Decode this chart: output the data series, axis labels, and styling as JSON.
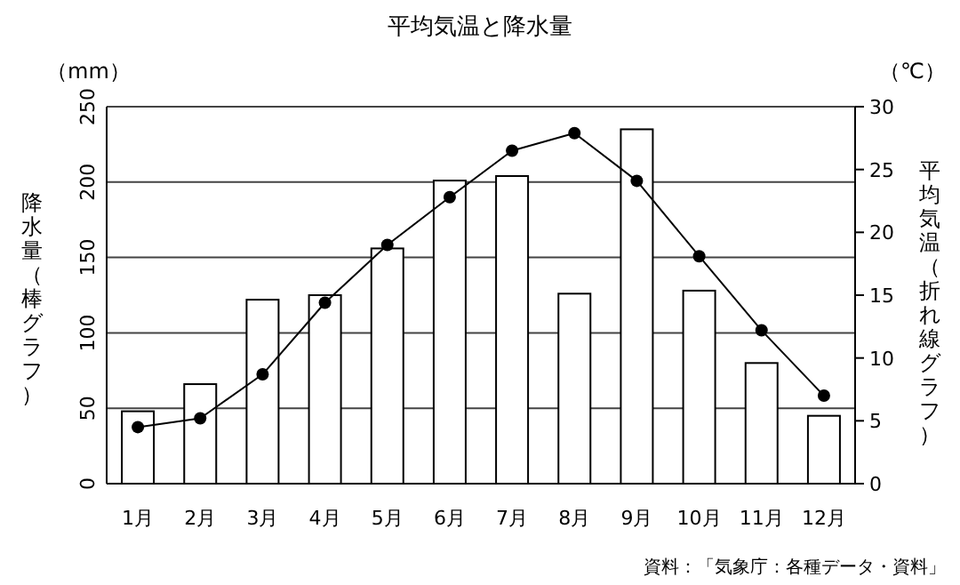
{
  "chart_data": {
    "type": "bar",
    "title": "平均気温と降水量",
    "ylabel": "降水量（棒グラフ）",
    "y2label": "平均気温（折れ線グラフ）",
    "categories": [
      "1月",
      "2月",
      "3月",
      "4月",
      "5月",
      "6月",
      "7月",
      "8月",
      "9月",
      "10月",
      "11月",
      "12月"
    ],
    "series": [
      {
        "color": "#ffffff",
        "values": [
          48,
          66,
          122,
          125,
          156,
          201,
          204,
          126,
          235,
          128,
          80,
          45
        ]
      },
      {
        "type": "line",
        "axis": "y2",
        "color": "#000000",
        "marker": "circle",
        "line_style": "solid",
        "values": [
          4.5,
          5.2,
          8.7,
          14.4,
          19.0,
          22.8,
          26.5,
          27.9,
          24.1,
          18.1,
          12.2,
          7.0
        ]
      }
    ],
    "ylim": [
      0,
      250
    ],
    "yticks": [
      0,
      50,
      100,
      150,
      200,
      250
    ],
    "y2lim": [
      0,
      30
    ],
    "y2ticks": [
      0,
      5,
      10,
      15,
      20,
      25,
      30
    ],
    "grid": "y",
    "legend": false,
    "annotations": [
      "（mm）",
      "（℃）",
      "資料：「気象庁：各種データ・資料」"
    ]
  }
}
